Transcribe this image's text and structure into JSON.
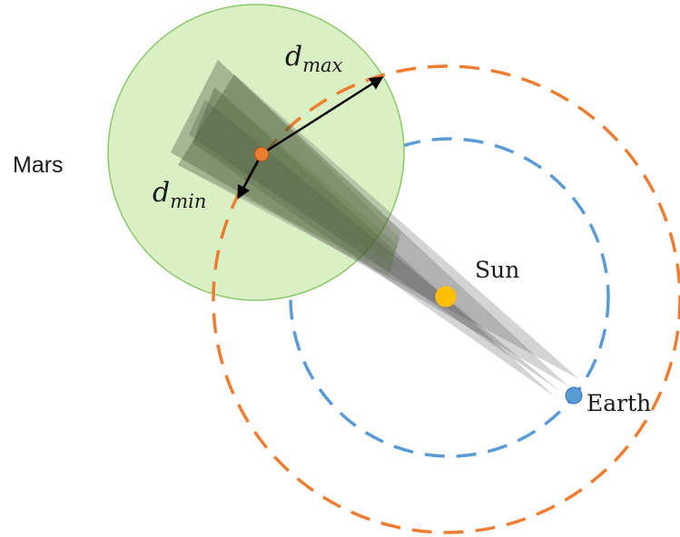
{
  "labels": {
    "mars": "Mars",
    "sun": "Sun",
    "earth": "Earth",
    "d_max_base": "d",
    "d_max_sub": "max",
    "d_min_base": "d",
    "d_min_sub": "min"
  },
  "colors": {
    "mars_orbit": "#ED7D31",
    "earth_orbit": "#5B9BD5",
    "mars_region_fill": "#D9EFC4",
    "mars_region_stroke": "#8CC86A",
    "mars_point": "#ED7D31",
    "sun": "#FFC000",
    "earth": "#5B9BD5",
    "arrow": "#000000",
    "fan_green": "#55703A",
    "fan_gray": "#3C3C3C"
  }
}
